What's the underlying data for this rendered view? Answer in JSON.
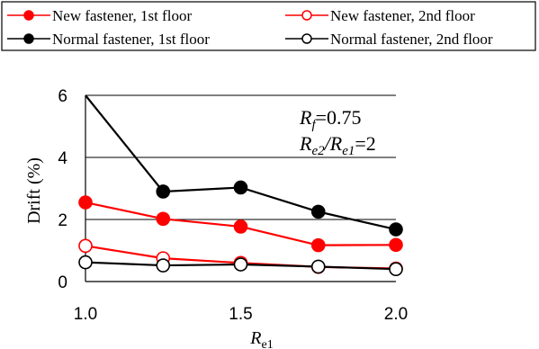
{
  "chart_data": {
    "type": "line",
    "title": "",
    "xlabel": {
      "base": "R",
      "sub": "e1"
    },
    "ylabel": "Drift (%)",
    "x": [
      1.0,
      1.25,
      1.5,
      1.75,
      2.0
    ],
    "x_tick_values": [
      1.0,
      1.5,
      2.0
    ],
    "x_tick_labels": [
      "1.0",
      "1.5",
      "2.0"
    ],
    "xlim": [
      1.0,
      2.0
    ],
    "y_tick_values": [
      0,
      2,
      4,
      6
    ],
    "y_tick_labels": [
      "0",
      "2",
      "4",
      "6"
    ],
    "ylim": [
      0,
      6
    ],
    "grid": "horizontal",
    "legend_position": "top",
    "annotation": {
      "line1": {
        "base": "R",
        "sub": "f",
        "rest": "=0.75"
      },
      "line2": {
        "base1": "R",
        "sub1": "e2",
        "mid": "/",
        "base2": "R",
        "sub2": "e1",
        "rest": "=2"
      }
    },
    "series": [
      {
        "name": "New fastener, 1st floor",
        "color": "#ff0000",
        "marker": "filled-circle",
        "values": [
          2.55,
          2.02,
          1.77,
          1.17,
          1.18
        ]
      },
      {
        "name": "New fastener, 2nd floor",
        "color": "#ff0000",
        "marker": "open-circle",
        "values": [
          1.15,
          0.75,
          0.6,
          0.47,
          0.42
        ]
      },
      {
        "name": "Normal fastener, 1st floor",
        "color": "#000000",
        "marker": "filled-circle",
        "values": [
          6.1,
          2.9,
          3.03,
          2.25,
          1.68
        ]
      },
      {
        "name": "Normal fastener, 2nd floor",
        "color": "#000000",
        "marker": "open-circle",
        "values": [
          0.62,
          0.52,
          0.55,
          0.48,
          0.4
        ]
      }
    ]
  }
}
